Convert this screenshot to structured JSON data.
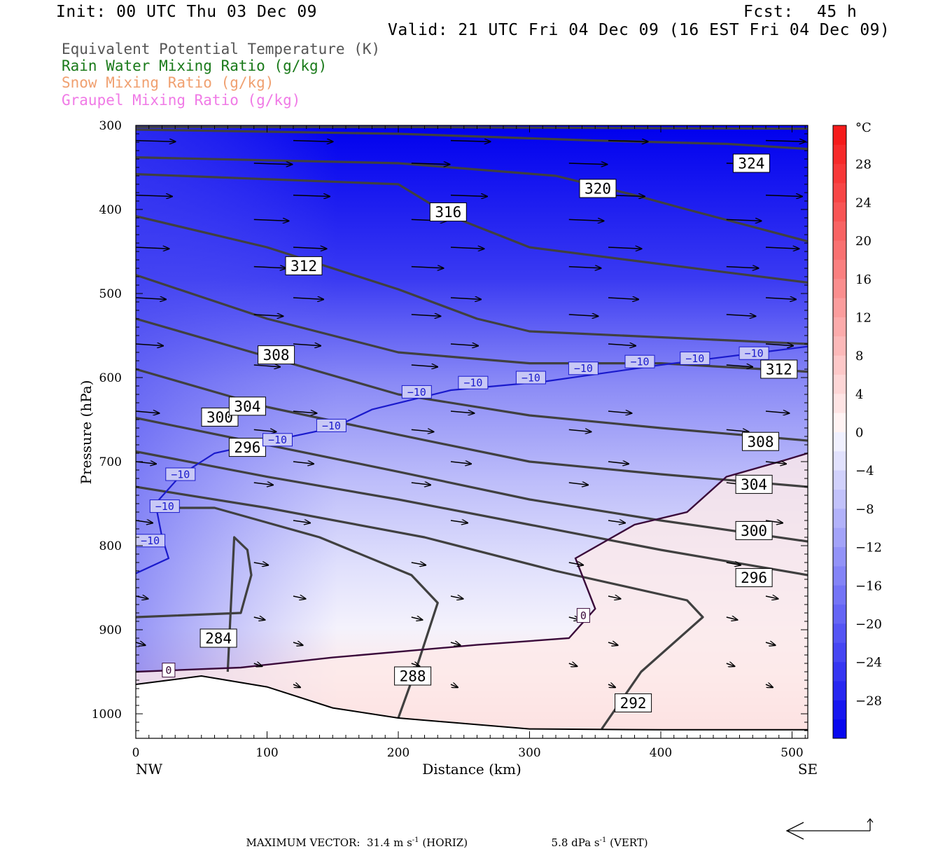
{
  "header": {
    "init": "Init: 00 UTC Thu 03 Dec 09",
    "fcst_label": "Fcst:",
    "fcst_value": "45 h",
    "valid": "Valid: 21 UTC Fri 04 Dec 09 (16 EST Fri 04 Dec 09)"
  },
  "legend": [
    {
      "text": "Equivalent Potential Temperature (K)",
      "color": "#555555"
    },
    {
      "text": "Rain Water Mixing Ratio (g/kg)",
      "color": "#1a7a1a"
    },
    {
      "text": "Snow Mixing Ratio (g/kg)",
      "color": "#f0a070"
    },
    {
      "text": "Graupel Mixing Ratio (g/kg)",
      "color": "#f07ae6"
    }
  ],
  "footer": {
    "max_vector_label": "MAXIMUM VECTOR:",
    "horiz": "31.4 m s",
    "horiz_sup": "-1",
    "horiz_tag": "(HORIZ)",
    "vert": "5.8 dPa s",
    "vert_sup": "-1",
    "vert_tag": "(VERT)"
  },
  "chart_data": {
    "type": "cross-section",
    "xlabel": "Distance (km)",
    "ylabel": "Pressure (hPa)",
    "xlim": [
      0,
      512
    ],
    "ylim": [
      1030,
      300
    ],
    "x_ticks": [
      0,
      100,
      200,
      300,
      400,
      500
    ],
    "y_ticks": [
      300,
      400,
      500,
      600,
      700,
      800,
      900,
      1000
    ],
    "x_end_labels": {
      "left": "NW",
      "right": "SE"
    },
    "colorbar": {
      "unit": "°C",
      "range": [
        -32,
        32
      ],
      "tick_labels": [
        "28",
        "24",
        "20",
        "16",
        "12",
        "8",
        "4",
        "0",
        "−4",
        "−8",
        "−12",
        "−16",
        "−20",
        "−24",
        "−28"
      ],
      "tick_values": [
        28,
        24,
        20,
        16,
        12,
        8,
        4,
        0,
        -4,
        -8,
        -12,
        -16,
        -20,
        -24,
        -28
      ]
    },
    "theta_e_contours": [
      {
        "value": 284,
        "label": "284",
        "points": [
          [
            0,
            885
          ],
          [
            80,
            880
          ],
          [
            88,
            835
          ],
          [
            85,
            805
          ],
          [
            75,
            790
          ],
          [
            70,
            950
          ]
        ]
      },
      {
        "value": 288,
        "label": "288",
        "points": [
          [
            20,
            755
          ],
          [
            60,
            755
          ],
          [
            140,
            790
          ],
          [
            210,
            835
          ],
          [
            230,
            868
          ],
          [
            215,
            940
          ],
          [
            200,
            1005
          ]
        ]
      },
      {
        "value": 292,
        "label": "292",
        "points": [
          [
            0,
            730
          ],
          [
            100,
            755
          ],
          [
            220,
            790
          ],
          [
            320,
            830
          ],
          [
            420,
            865
          ],
          [
            432,
            885
          ],
          [
            385,
            950
          ],
          [
            355,
            1018
          ]
        ]
      },
      {
        "value": 296,
        "label": "296",
        "points": [
          [
            0,
            688
          ],
          [
            100,
            718
          ],
          [
            200,
            745
          ],
          [
            300,
            775
          ],
          [
            400,
            805
          ],
          [
            512,
            835
          ]
        ]
      },
      {
        "value": 300,
        "label": "300",
        "points": [
          [
            0,
            648
          ],
          [
            100,
            680
          ],
          [
            200,
            712
          ],
          [
            300,
            745
          ],
          [
            400,
            770
          ],
          [
            512,
            795
          ]
        ]
      },
      {
        "value": 304,
        "label": "304",
        "points": [
          [
            0,
            590
          ],
          [
            100,
            635
          ],
          [
            200,
            668
          ],
          [
            300,
            700
          ],
          [
            400,
            715
          ],
          [
            512,
            730
          ]
        ]
      },
      {
        "value": 308,
        "label": "308",
        "points": [
          [
            0,
            530
          ],
          [
            100,
            575
          ],
          [
            200,
            620
          ],
          [
            300,
            645
          ],
          [
            400,
            660
          ],
          [
            512,
            675
          ]
        ]
      },
      {
        "value": 312,
        "label": "312",
        "points": [
          [
            0,
            478
          ],
          [
            100,
            530
          ],
          [
            200,
            570
          ],
          [
            300,
            583
          ],
          [
            400,
            583
          ],
          [
            512,
            593
          ]
        ]
      },
      {
        "value": 316,
        "label": "316",
        "points": [
          [
            0,
            408
          ],
          [
            100,
            445
          ],
          [
            200,
            495
          ],
          [
            260,
            530
          ],
          [
            300,
            545
          ],
          [
            512,
            560
          ]
        ]
      },
      {
        "value": 320,
        "label": "320",
        "points": [
          [
            0,
            358
          ],
          [
            200,
            370
          ],
          [
            240,
            408
          ],
          [
            300,
            445
          ],
          [
            400,
            465
          ],
          [
            512,
            487
          ]
        ]
      },
      {
        "value": 324,
        "label": "324",
        "points": [
          [
            0,
            338
          ],
          [
            200,
            345
          ],
          [
            320,
            360
          ],
          [
            380,
            383
          ],
          [
            420,
            400
          ],
          [
            512,
            438
          ]
        ]
      }
    ],
    "isotherm_minus10": {
      "label": "−10",
      "points": [
        [
          0,
          833
        ],
        [
          25,
          815
        ],
        [
          20,
          790
        ],
        [
          15,
          750
        ],
        [
          35,
          715
        ],
        [
          60,
          690
        ],
        [
          110,
          673
        ],
        [
          150,
          660
        ],
        [
          180,
          638
        ],
        [
          240,
          615
        ],
        [
          310,
          605
        ],
        [
          400,
          585
        ],
        [
          512,
          563
        ]
      ]
    },
    "isotherm_zero": {
      "label": "0",
      "points": [
        [
          0,
          950
        ],
        [
          80,
          945
        ],
        [
          150,
          933
        ],
        [
          260,
          918
        ],
        [
          330,
          910
        ],
        [
          350,
          875
        ],
        [
          335,
          815
        ],
        [
          380,
          775
        ],
        [
          420,
          760
        ],
        [
          450,
          718
        ],
        [
          495,
          698
        ],
        [
          512,
          690
        ]
      ]
    },
    "terrain_pressure": [
      [
        0,
        965
      ],
      [
        50,
        955
      ],
      [
        100,
        968
      ],
      [
        150,
        993
      ],
      [
        200,
        1005
      ],
      [
        300,
        1018
      ],
      [
        400,
        1019
      ],
      [
        512,
        1019
      ]
    ]
  }
}
